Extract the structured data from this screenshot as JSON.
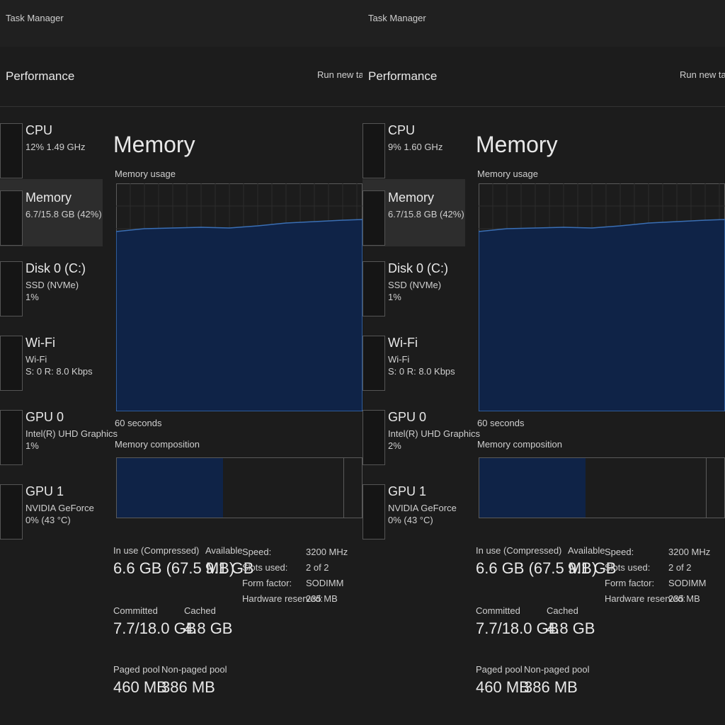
{
  "windows": [
    {
      "app_title": "Task Manager",
      "page_title": "Performance",
      "action": "Run new task",
      "sidebar": [
        {
          "name": "CPU",
          "lines": [
            "12% 1.49 GHz"
          ]
        },
        {
          "name": "Memory",
          "lines": [
            "6.7/15.8 GB (42%)"
          ]
        },
        {
          "name": "Disk 0 (C:)",
          "lines": [
            "SSD (NVMe)",
            "1%"
          ]
        },
        {
          "name": "Wi-Fi",
          "lines": [
            "Wi-Fi",
            "S: 0 R: 8.0 Kbps"
          ]
        },
        {
          "name": "GPU 0",
          "lines": [
            "Intel(R) UHD Graphics",
            "1%"
          ]
        },
        {
          "name": "GPU 1",
          "lines": [
            "NVIDIA GeForce",
            "0% (43 °C)"
          ]
        }
      ],
      "heading": "Memory",
      "usage_label": "Memory usage",
      "time_label": "60 seconds",
      "composition_label": "Memory composition",
      "stats": [
        {
          "label": "In use (Compressed)",
          "value": "6.6 GB (67.5 MB)"
        },
        {
          "label": "Available",
          "value": "9.1 GB"
        },
        {
          "label": "Committed",
          "value": "7.7/18.0 GB"
        },
        {
          "label": "Cached",
          "value": "4.8 GB"
        },
        {
          "label": "Paged pool",
          "value": "460 MB"
        },
        {
          "label": "Non-paged pool",
          "value": "386 MB"
        }
      ],
      "details": [
        [
          "Speed:",
          "3200 MHz"
        ],
        [
          "Slots used:",
          "2 of 2"
        ],
        [
          "Form factor:",
          "SODIMM"
        ],
        [
          "Hardware reserved:",
          "235 MB"
        ]
      ]
    },
    {
      "app_title": "Task Manager",
      "page_title": "Performance",
      "action": "Run new task",
      "sidebar": [
        {
          "name": "CPU",
          "lines": [
            "9% 1.60 GHz"
          ]
        },
        {
          "name": "Memory",
          "lines": [
            "6.7/15.8 GB (42%)"
          ]
        },
        {
          "name": "Disk 0 (C:)",
          "lines": [
            "SSD (NVMe)",
            "1%"
          ]
        },
        {
          "name": "Wi-Fi",
          "lines": [
            "Wi-Fi",
            "S: 0 R: 8.0 Kbps"
          ]
        },
        {
          "name": "GPU 0",
          "lines": [
            "Intel(R) UHD Graphics",
            "2%"
          ]
        },
        {
          "name": "GPU 1",
          "lines": [
            "NVIDIA GeForce",
            "0% (43 °C)"
          ]
        }
      ],
      "heading": "Memory",
      "usage_label": "Memory usage",
      "time_label": "60 seconds",
      "composition_label": "Memory composition",
      "stats": [
        {
          "label": "In use (Compressed)",
          "value": "6.6 GB (67.5 MB)"
        },
        {
          "label": "Available",
          "value": "9.1 GB"
        },
        {
          "label": "Committed",
          "value": "7.7/18.0 GB"
        },
        {
          "label": "Cached",
          "value": "4.8 GB"
        },
        {
          "label": "Paged pool",
          "value": "460 MB"
        },
        {
          "label": "Non-paged pool",
          "value": "386 MB"
        }
      ],
      "details": [
        [
          "Speed:",
          "3200 MHz"
        ],
        [
          "Slots used:",
          "2 of 2"
        ],
        [
          "Form factor:",
          "SODIMM"
        ],
        [
          "Hardware reserved:",
          "235 MB"
        ]
      ]
    }
  ]
}
